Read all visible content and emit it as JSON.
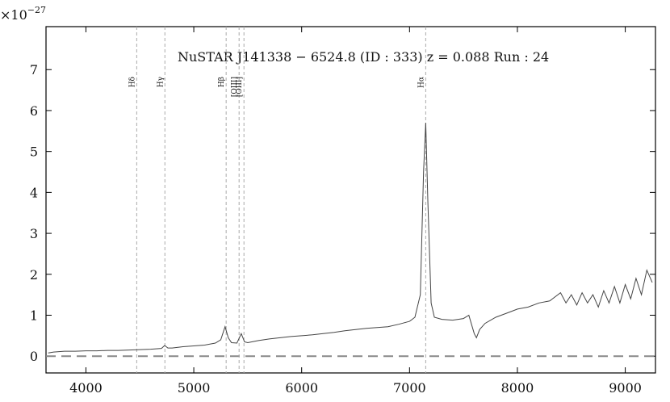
{
  "chart_data": {
    "type": "line",
    "title": "NuSTAR J141338 − 6524.8 (ID : 333)   z = 0.088   Run : 24",
    "y_multiplier_base": "×10",
    "y_multiplier_exponent": "−27",
    "x": [
      3650,
      3700,
      3800,
      3900,
      4000,
      4100,
      4200,
      4300,
      4400,
      4500,
      4600,
      4700,
      4730,
      4760,
      4800,
      4900,
      5000,
      5100,
      5200,
      5250,
      5290,
      5320,
      5350,
      5400,
      5440,
      5470,
      5500,
      5600,
      5700,
      5800,
      5900,
      6000,
      6100,
      6200,
      6300,
      6400,
      6500,
      6600,
      6700,
      6800,
      6900,
      7000,
      7050,
      7100,
      7130,
      7150,
      7170,
      7200,
      7230,
      7300,
      7400,
      7500,
      7550,
      7600,
      7620,
      7650,
      7700,
      7800,
      7900,
      8000,
      8100,
      8200,
      8300,
      8400,
      8450,
      8500,
      8550,
      8600,
      8650,
      8700,
      8750,
      8800,
      8850,
      8900,
      8950,
      9000,
      9050,
      9100,
      9150,
      9200,
      9250
    ],
    "series": [
      {
        "color": "#444444",
        "values": [
          0.08,
          0.1,
          0.12,
          0.12,
          0.13,
          0.13,
          0.14,
          0.14,
          0.15,
          0.16,
          0.17,
          0.19,
          0.26,
          0.2,
          0.2,
          0.23,
          0.25,
          0.27,
          0.32,
          0.4,
          0.72,
          0.45,
          0.33,
          0.32,
          0.55,
          0.35,
          0.33,
          0.38,
          0.42,
          0.45,
          0.48,
          0.5,
          0.52,
          0.55,
          0.58,
          0.62,
          0.65,
          0.68,
          0.7,
          0.72,
          0.78,
          0.85,
          0.95,
          1.5,
          4.5,
          5.7,
          3.8,
          1.3,
          0.95,
          0.9,
          0.88,
          0.92,
          1.0,
          0.55,
          0.45,
          0.65,
          0.8,
          0.95,
          1.05,
          1.15,
          1.2,
          1.3,
          1.35,
          1.55,
          1.3,
          1.5,
          1.25,
          1.55,
          1.3,
          1.5,
          1.2,
          1.6,
          1.3,
          1.7,
          1.3,
          1.75,
          1.4,
          1.9,
          1.5,
          2.1,
          1.8
        ]
      }
    ],
    "emission_lines": [
      {
        "label": "Hδ",
        "x": 4471
      },
      {
        "label": "Hγ",
        "x": 4732
      },
      {
        "label": "Hβ",
        "x": 5300
      },
      {
        "label": "[OIII]",
        "x": 5420
      },
      {
        "label": "[OIII]",
        "x": 5465
      },
      {
        "label": "Hα",
        "x": 7150
      }
    ],
    "emission_line_color": "#aaaaaa",
    "reference_line": 0,
    "reference_line_color": "#888888",
    "xlim": [
      3630,
      9280
    ],
    "ylim": [
      -0.41,
      8.05
    ],
    "xticks": [
      4000,
      5000,
      6000,
      7000,
      8000,
      9000
    ],
    "yticks": [
      0,
      1,
      2,
      3,
      4,
      5,
      6,
      7
    ]
  }
}
